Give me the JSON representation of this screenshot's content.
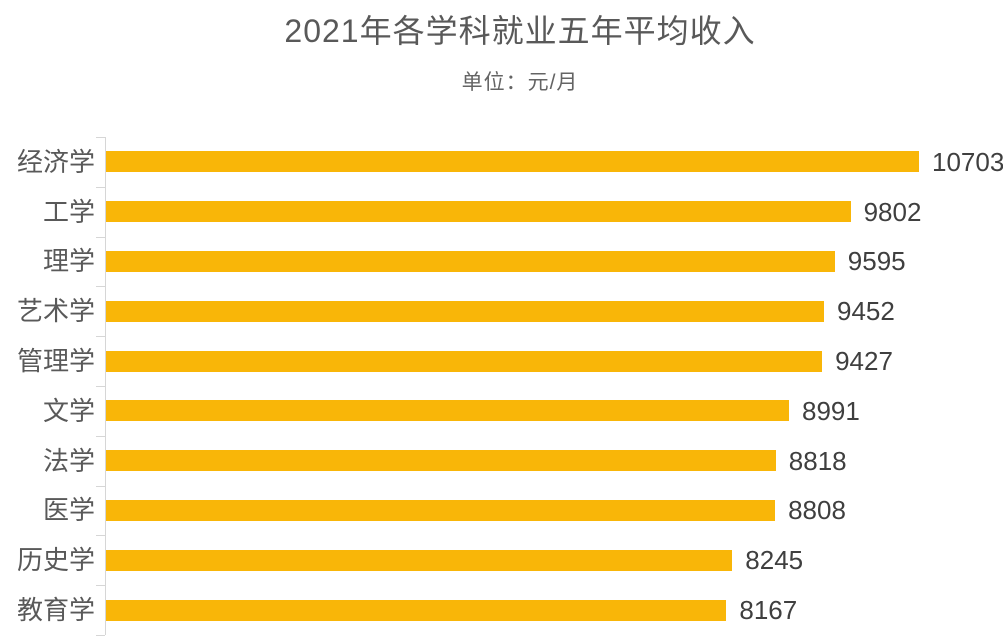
{
  "header": {
    "title": "2021年各学科就业五年平均收入",
    "subtitle": "单位：元/月"
  },
  "chart_data": {
    "type": "bar",
    "orientation": "horizontal",
    "title": "2021年各学科就业五年平均收入",
    "subtitle": "单位：元/月",
    "unit": "元/月",
    "categories": [
      "经济学",
      "工学",
      "理学",
      "艺术学",
      "管理学",
      "文学",
      "法学",
      "医学",
      "历史学",
      "教育学"
    ],
    "values": [
      10703,
      9802,
      9595,
      9452,
      9427,
      8991,
      8818,
      8808,
      8245,
      8167
    ],
    "sort_order": "descending",
    "data_labels_shown": true,
    "x_axis": "hidden",
    "grid": false,
    "legend": false,
    "bar_color": "#f9b608",
    "axis_color": "#d6d6d6",
    "label_color": "#595959",
    "value_label_color": "#3f3f3f",
    "title_color": "#595959",
    "background_color": "#ffffff"
  }
}
